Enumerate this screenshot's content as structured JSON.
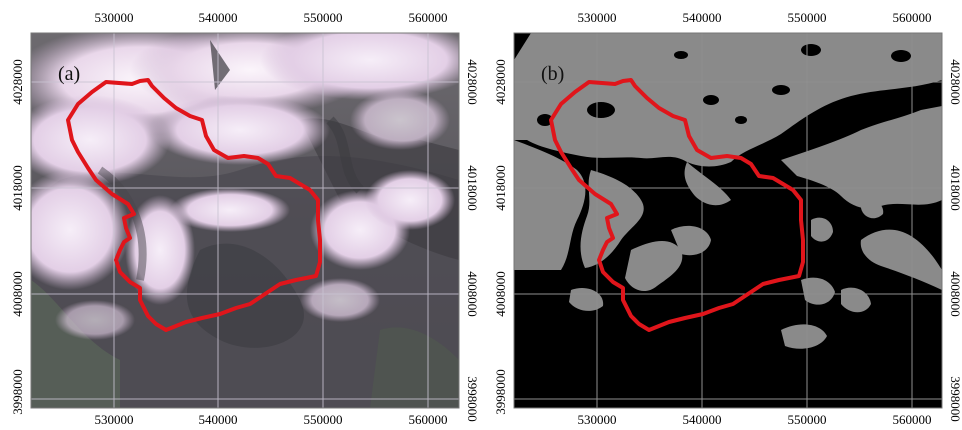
{
  "figure": {
    "panels": [
      {
        "id": "a",
        "label": "(a)",
        "x_ticks": [
          "530000",
          "540000",
          "550000",
          "560000"
        ],
        "y_ticks": [
          "4028000",
          "4018000",
          "4008000",
          "3998000"
        ]
      },
      {
        "id": "b",
        "label": "(b)",
        "x_ticks": [
          "530000",
          "540000",
          "550000",
          "560000"
        ],
        "y_ticks": [
          "4028000",
          "4018000",
          "4008000",
          "3998000"
        ]
      }
    ],
    "colors": {
      "boundary": "#e0151b",
      "grid_a": "#c9c3d2",
      "grid_b": "#8f8f8f",
      "snow_b": "#8a8a8a",
      "background_b": "#000000"
    }
  }
}
